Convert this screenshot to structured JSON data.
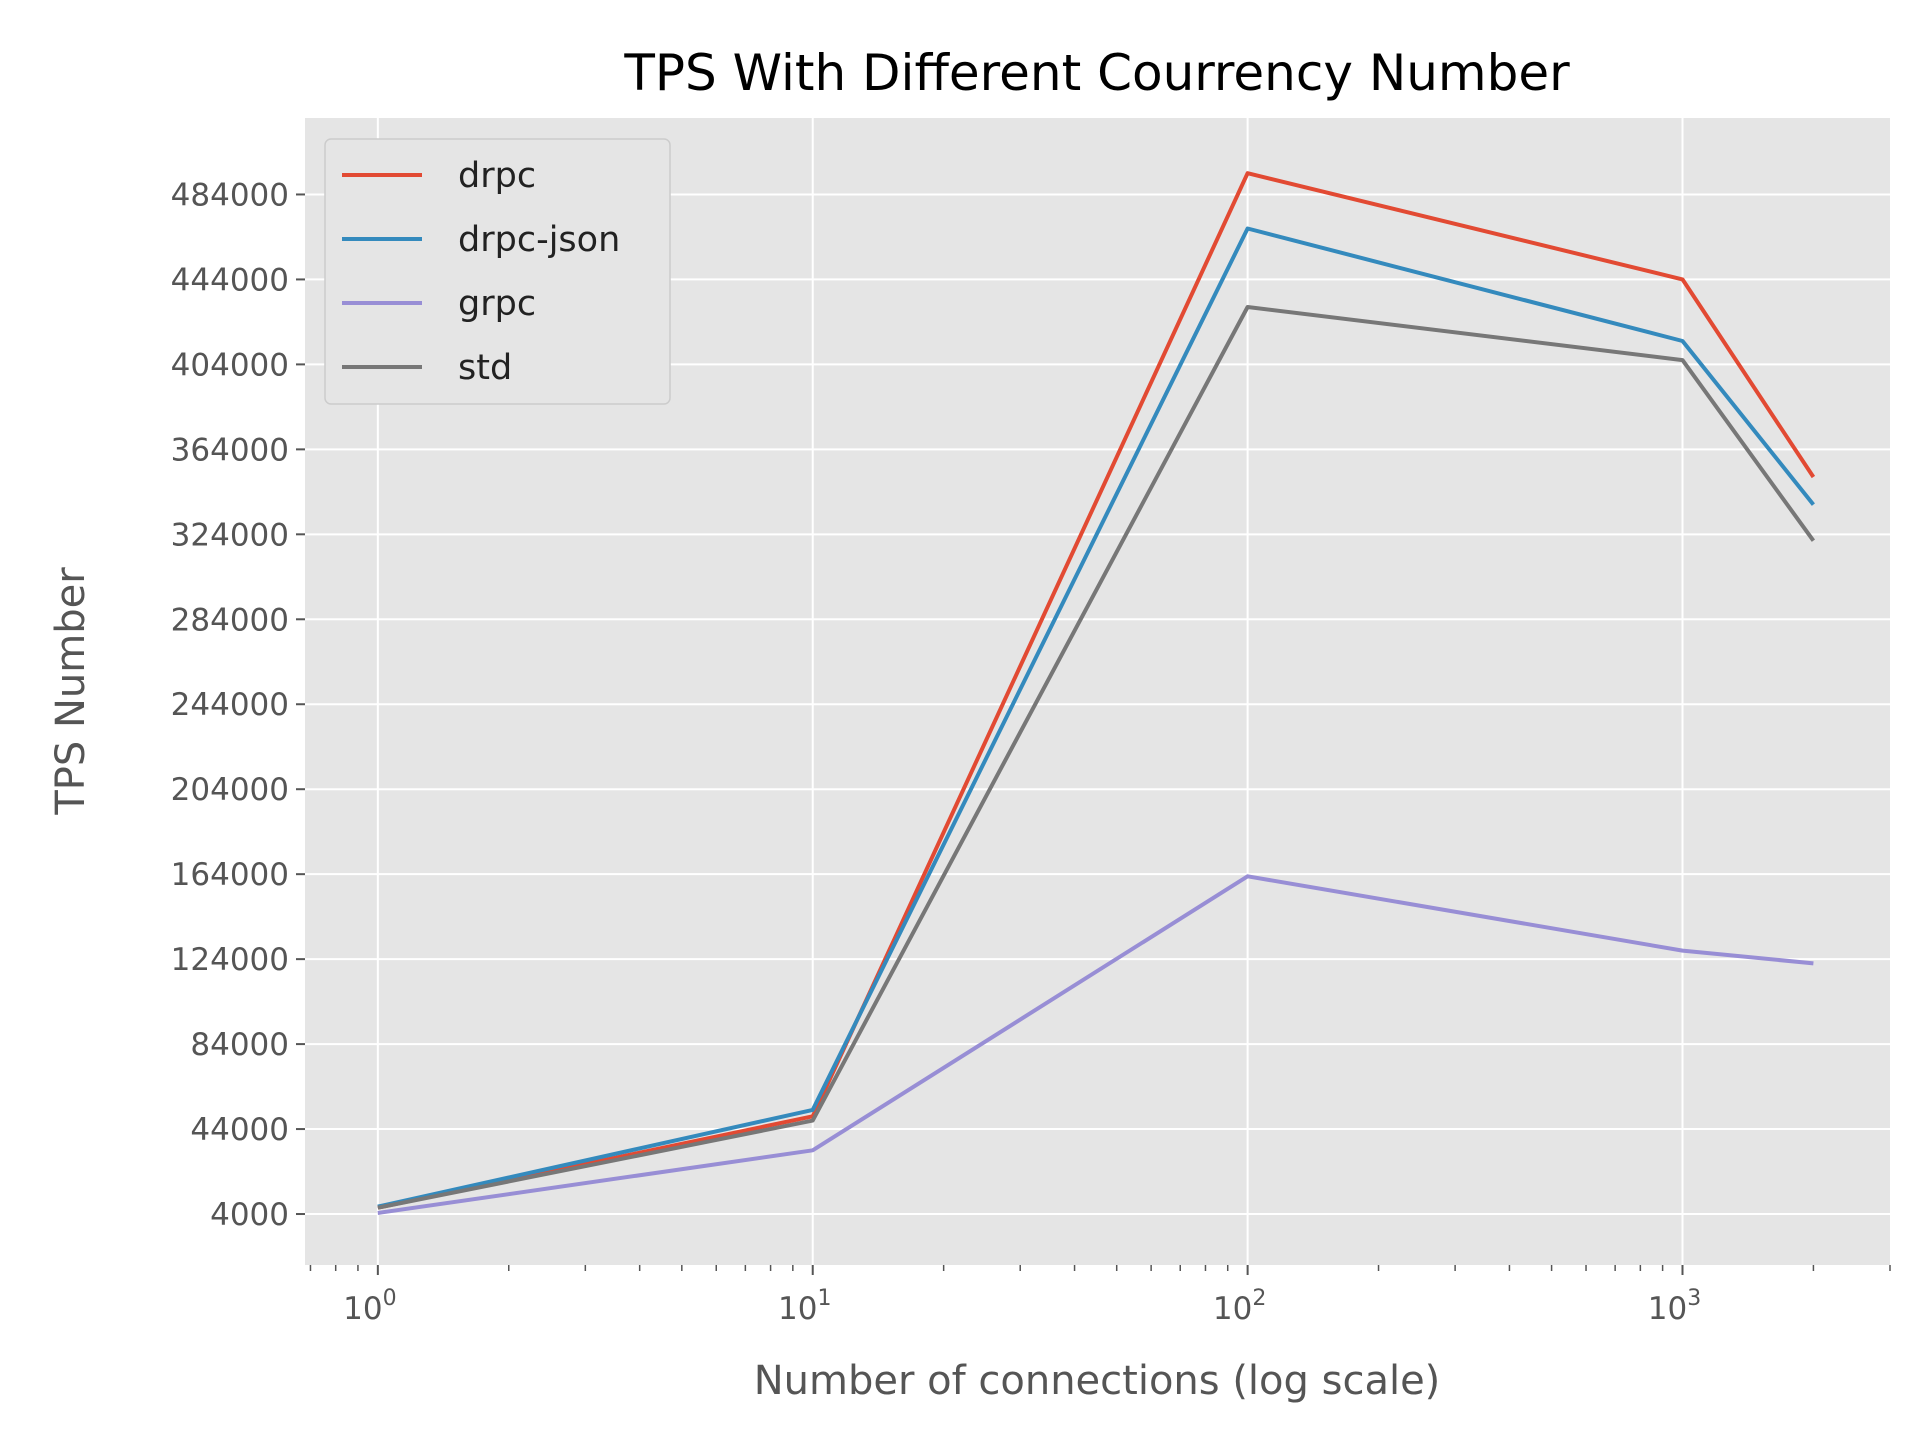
{
  "chart_data": {
    "type": "line",
    "title": "TPS With Different Courrency Number",
    "xlabel": "Number of connections (log scale)",
    "ylabel": "TPS Number",
    "x_scale": "log",
    "x": [
      1,
      10,
      100,
      1000,
      2000
    ],
    "xticks": [
      {
        "value": 1,
        "base": "10",
        "exp": "0"
      },
      {
        "value": 10,
        "base": "10",
        "exp": "1"
      },
      {
        "value": 100,
        "base": "10",
        "exp": "2"
      },
      {
        "value": 1000,
        "base": "10",
        "exp": "3"
      }
    ],
    "yticks": [
      4000,
      44000,
      84000,
      124000,
      164000,
      204000,
      244000,
      284000,
      324000,
      364000,
      404000,
      444000,
      484000
    ],
    "ytick_labels": [
      "4000",
      "44000",
      "84000",
      "124000",
      "164000",
      "204000",
      "244000",
      "284000",
      "324000",
      "364000",
      "404000",
      "444000",
      "484000"
    ],
    "xlim": [
      0.68,
      3000
    ],
    "ylim": [
      -20000,
      520000
    ],
    "grid": true,
    "legend_position": "top-left",
    "series": [
      {
        "name": "drpc",
        "color": "#E24A33",
        "values": [
          7000,
          50000,
          494000,
          444000,
          351000
        ]
      },
      {
        "name": "drpc-json",
        "color": "#348ABD",
        "values": [
          7500,
          53000,
          468000,
          415000,
          338000
        ]
      },
      {
        "name": "grpc",
        "color": "#988ED5",
        "values": [
          4500,
          34000,
          163000,
          128000,
          122000
        ]
      },
      {
        "name": "std",
        "color": "#777777",
        "values": [
          7000,
          48000,
          431000,
          406000,
          321000
        ]
      }
    ],
    "colors": {
      "plot_background": "#E5E5E5",
      "grid": "#FFFFFF"
    }
  }
}
